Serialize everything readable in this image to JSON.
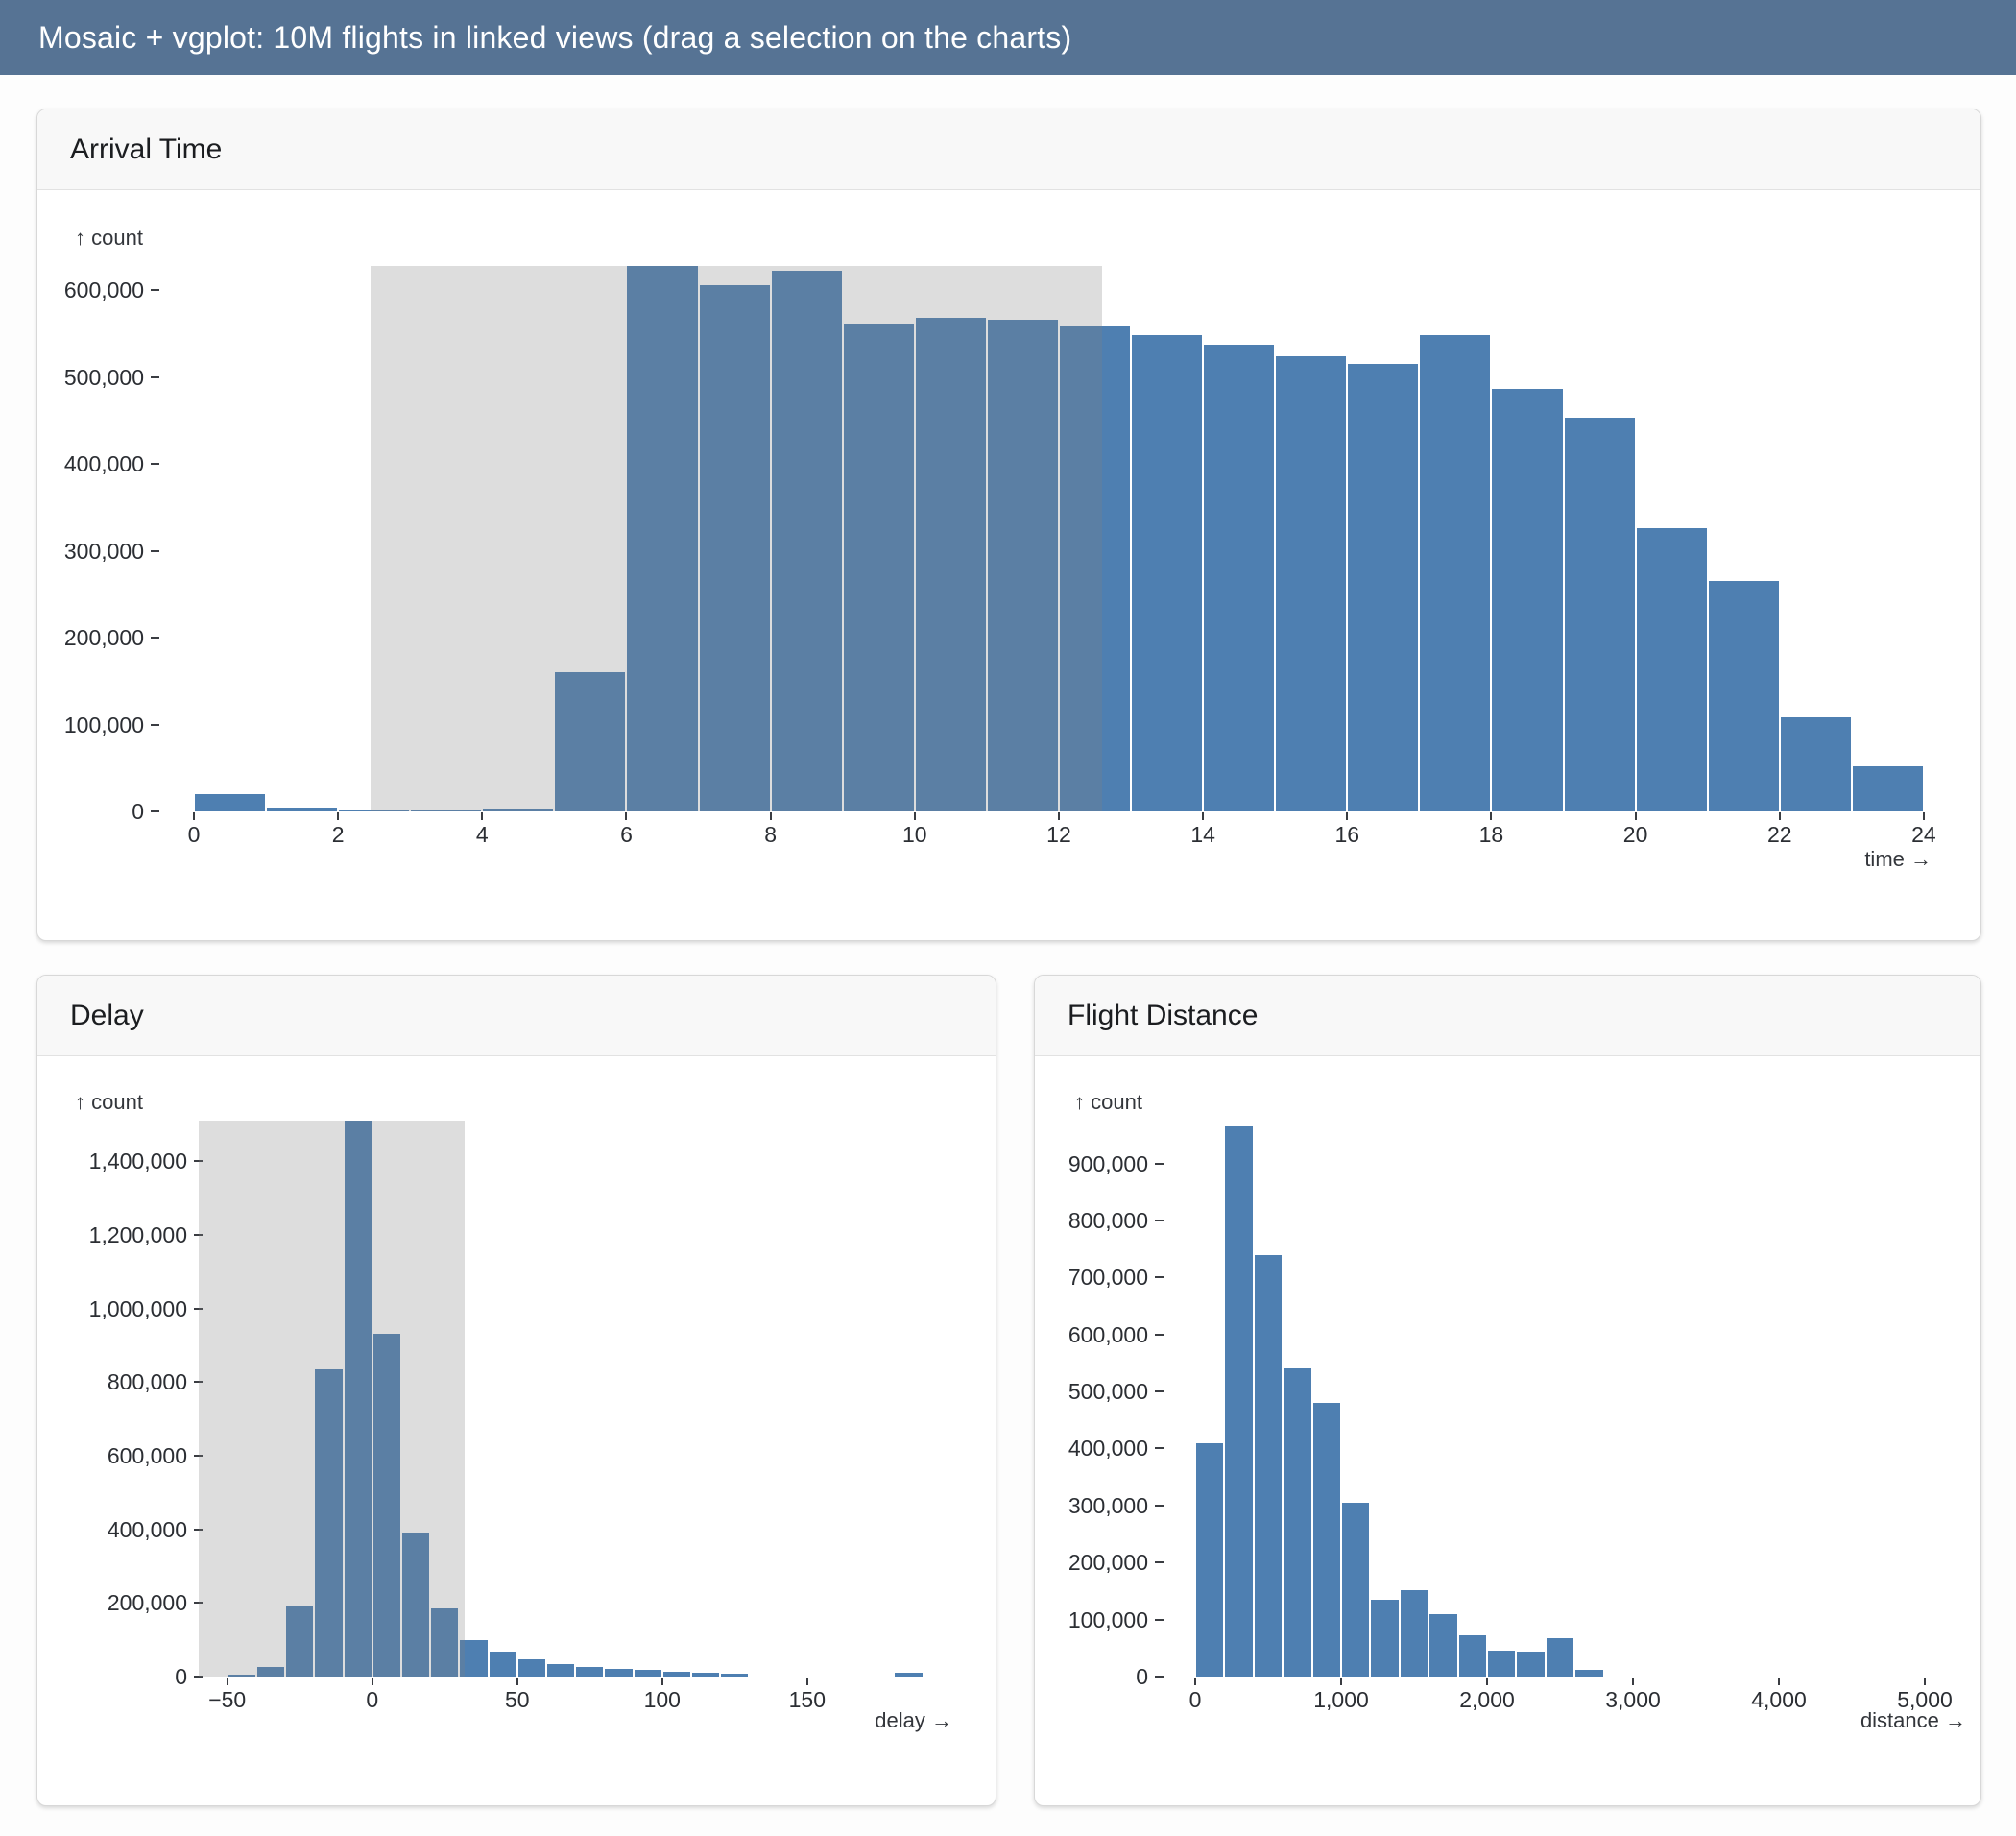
{
  "header": {
    "title": "Mosaic + vgplot: 10M flights in linked views (drag a selection on the charts)"
  },
  "colors": {
    "header_bg": "#567394",
    "bar_fill": "#4e7fb1",
    "selection_overlay": "rgba(128,128,128,0.27)",
    "card_header_bg": "#f8f8f8",
    "tick_text": "#2b2e33"
  },
  "chart_data": [
    {
      "id": "arrival",
      "type": "bar",
      "title": "Arrival Time",
      "ylabel": "↑ count",
      "xlabel": "time →",
      "bin_width": 1,
      "x_domain": [
        0,
        24
      ],
      "y_max": 628000,
      "x_ticks": [
        0,
        2,
        4,
        6,
        8,
        10,
        12,
        14,
        16,
        18,
        20,
        22,
        24
      ],
      "y_ticks": [
        0,
        100000,
        200000,
        300000,
        400000,
        500000,
        600000
      ],
      "selection": [
        2.45,
        12.6
      ],
      "bins": [
        {
          "x0": 0,
          "count": 20000
        },
        {
          "x0": 1,
          "count": 4000
        },
        {
          "x0": 2,
          "count": 1500
        },
        {
          "x0": 3,
          "count": 1200
        },
        {
          "x0": 4,
          "count": 3000
        },
        {
          "x0": 5,
          "count": 160000
        },
        {
          "x0": 6,
          "count": 628000
        },
        {
          "x0": 7,
          "count": 606000
        },
        {
          "x0": 8,
          "count": 622000
        },
        {
          "x0": 9,
          "count": 562000
        },
        {
          "x0": 10,
          "count": 568000
        },
        {
          "x0": 11,
          "count": 566000
        },
        {
          "x0": 12,
          "count": 558000
        },
        {
          "x0": 13,
          "count": 548000
        },
        {
          "x0": 14,
          "count": 537000
        },
        {
          "x0": 15,
          "count": 524000
        },
        {
          "x0": 16,
          "count": 515000
        },
        {
          "x0": 17,
          "count": 548000
        },
        {
          "x0": 18,
          "count": 486000
        },
        {
          "x0": 19,
          "count": 453000
        },
        {
          "x0": 20,
          "count": 326000
        },
        {
          "x0": 21,
          "count": 265000
        },
        {
          "x0": 22,
          "count": 108000
        },
        {
          "x0": 23,
          "count": 52000
        }
      ]
    },
    {
      "id": "delay",
      "type": "bar",
      "title": "Delay",
      "ylabel": "↑ count",
      "xlabel": "delay →",
      "bin_width": 10,
      "x_domain": [
        -60,
        190
      ],
      "y_max": 1510000,
      "x_ticks": [
        -50,
        0,
        50,
        100,
        150
      ],
      "y_ticks": [
        0,
        200000,
        400000,
        600000,
        800000,
        1000000,
        1200000,
        1400000
      ],
      "selection": [
        -60,
        32
      ],
      "bins": [
        {
          "x0": -50,
          "count": 5000
        },
        {
          "x0": -40,
          "count": 25000
        },
        {
          "x0": -30,
          "count": 190000
        },
        {
          "x0": -20,
          "count": 835000
        },
        {
          "x0": -10,
          "count": 1510000
        },
        {
          "x0": 0,
          "count": 930000
        },
        {
          "x0": 10,
          "count": 390000
        },
        {
          "x0": 20,
          "count": 185000
        },
        {
          "x0": 30,
          "count": 100000
        },
        {
          "x0": 40,
          "count": 68000
        },
        {
          "x0": 50,
          "count": 48000
        },
        {
          "x0": 60,
          "count": 33000
        },
        {
          "x0": 70,
          "count": 27000
        },
        {
          "x0": 80,
          "count": 22000
        },
        {
          "x0": 90,
          "count": 18000
        },
        {
          "x0": 100,
          "count": 13000
        },
        {
          "x0": 110,
          "count": 10000
        },
        {
          "x0": 120,
          "count": 9000
        },
        {
          "x0": 180,
          "count": 10000
        }
      ]
    },
    {
      "id": "distance",
      "type": "bar",
      "title": "Flight Distance",
      "ylabel": "↑ count",
      "xlabel": "distance →",
      "bin_width": 200,
      "x_domain": [
        0,
        5030
      ],
      "y_max": 965000,
      "x_ticks": [
        0,
        1000,
        2000,
        3000,
        4000,
        5000
      ],
      "y_ticks": [
        0,
        100000,
        200000,
        300000,
        400000,
        500000,
        600000,
        700000,
        800000,
        900000
      ],
      "selection": null,
      "bins": [
        {
          "x0": 0,
          "count": 410000
        },
        {
          "x0": 200,
          "count": 965000
        },
        {
          "x0": 400,
          "count": 740000
        },
        {
          "x0": 600,
          "count": 540000
        },
        {
          "x0": 800,
          "count": 480000
        },
        {
          "x0": 1000,
          "count": 305000
        },
        {
          "x0": 1200,
          "count": 135000
        },
        {
          "x0": 1400,
          "count": 152000
        },
        {
          "x0": 1600,
          "count": 110000
        },
        {
          "x0": 1800,
          "count": 72000
        },
        {
          "x0": 2000,
          "count": 45000
        },
        {
          "x0": 2200,
          "count": 44000
        },
        {
          "x0": 2400,
          "count": 68000
        },
        {
          "x0": 2600,
          "count": 12000
        }
      ]
    }
  ]
}
